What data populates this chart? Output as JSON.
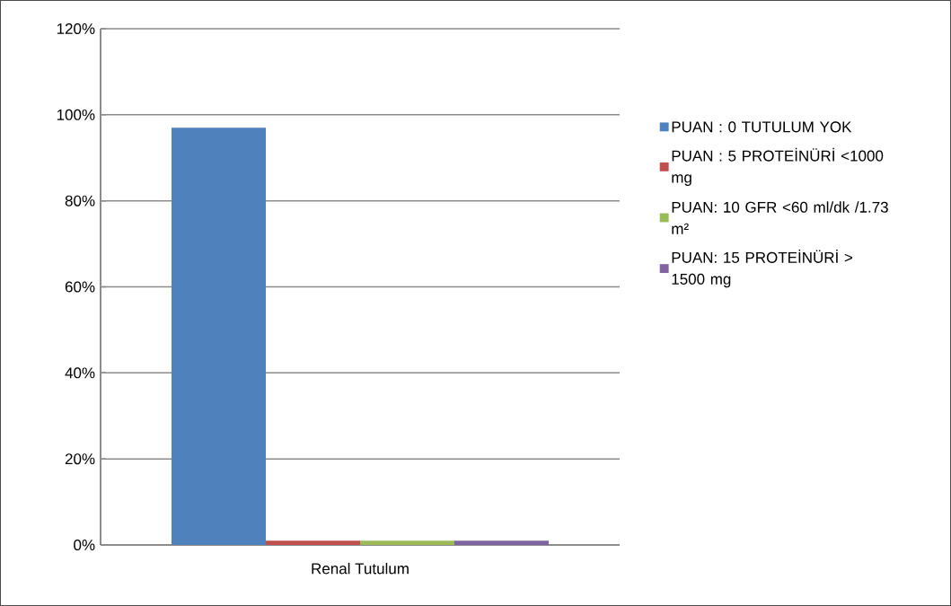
{
  "chart_data": {
    "type": "bar",
    "categories": [
      "Renal Tutulum"
    ],
    "series": [
      {
        "name": "PUAN : 0 TUTULUM YOK",
        "color": "#4f81bd",
        "values": [
          97
        ]
      },
      {
        "name": "PUAN : 5  PROTEİNÜRİ <1000 mg",
        "color": "#c0504d",
        "values": [
          1
        ]
      },
      {
        "name": "PUAN: 10  GFR <60 ml/dk /1.73 m²",
        "color": "#9bbb59",
        "values": [
          1
        ]
      },
      {
        "name": "PUAN: 15 PROTEİNÜRİ > 1500 mg",
        "color": "#8064a2",
        "values": [
          1
        ]
      }
    ],
    "ylim": [
      0,
      120
    ],
    "yticks": [
      {
        "value": 0,
        "label": "0%"
      },
      {
        "value": 20,
        "label": "20%"
      },
      {
        "value": 40,
        "label": "40%"
      },
      {
        "value": 60,
        "label": "60%"
      },
      {
        "value": 80,
        "label": "80%"
      },
      {
        "value": 100,
        "label": "100%"
      },
      {
        "value": 120,
        "label": "120%"
      }
    ],
    "grid": "y",
    "legend": "right"
  }
}
